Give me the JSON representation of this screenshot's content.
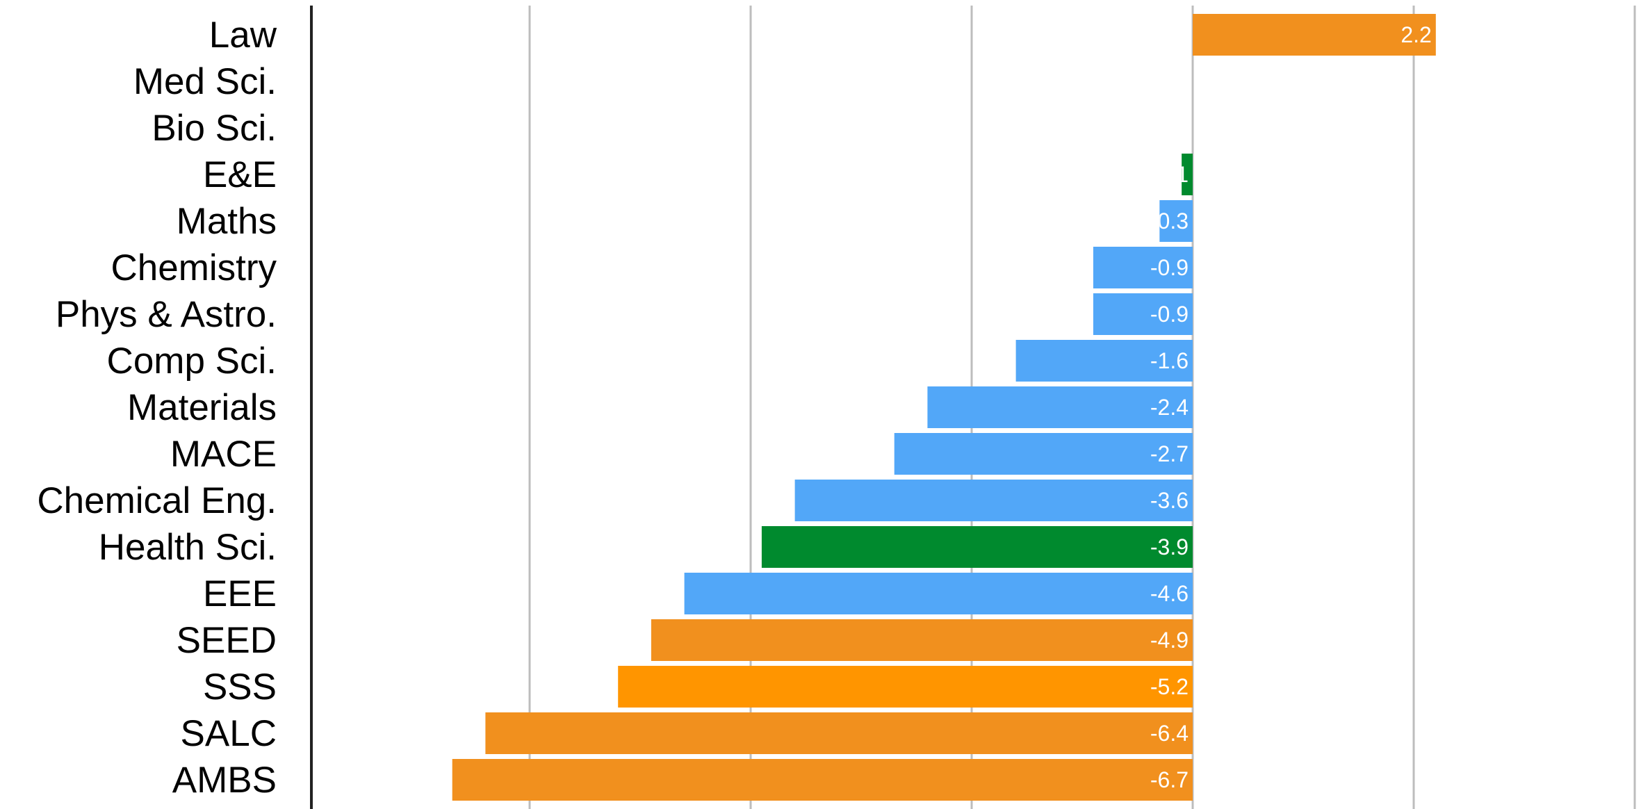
{
  "chart_data": {
    "type": "bar",
    "orientation": "horizontal",
    "title": "",
    "xlabel": "",
    "ylabel": "",
    "grid": true,
    "legend": "none",
    "xlim": [
      -8,
      4
    ],
    "x_gridlines": [
      -6,
      -4,
      -2,
      0,
      2,
      4
    ],
    "categories": [
      "Law",
      "Med Sci.",
      "Bio Sci.",
      "E&E",
      "Maths",
      "Chemistry",
      "Phys & Astro.",
      "Comp Sci.",
      "Materials",
      "MACE",
      "Chemical Eng.",
      "Health Sci.",
      "EEE",
      "SEED",
      "SSS",
      "SALC",
      "AMBS"
    ],
    "values": [
      2.2,
      null,
      null,
      -0.1,
      -0.3,
      -0.9,
      -0.9,
      -1.6,
      -2.4,
      -2.7,
      -3.6,
      -3.9,
      -4.6,
      -4.9,
      -5.2,
      -6.4,
      -6.7
    ],
    "data_labels": [
      "2.2",
      "",
      "",
      "-0.1",
      "-0.3",
      "-0.9",
      "-0.9",
      "-1.6",
      "-2.4",
      "-2.7",
      "-3.6",
      "-3.9",
      "-4.6",
      "-4.9",
      "-5.2",
      "-6.4",
      "-6.7"
    ],
    "bar_colors": [
      "#f1901e",
      "#f1901e",
      "#f1901e",
      "#008a2e",
      "#52a7f8",
      "#52a7f8",
      "#52a7f8",
      "#52a7f8",
      "#52a7f8",
      "#52a7f8",
      "#52a7f8",
      "#008a2e",
      "#52a7f8",
      "#f1901e",
      "#ff9500",
      "#f1901e",
      "#f1901e"
    ],
    "colors": {
      "orange": "#f1901e",
      "bright_orange": "#ff9500",
      "blue": "#52a7f8",
      "green": "#008a2e",
      "gridline": "#bdbdbd",
      "axis": "#222222"
    }
  }
}
